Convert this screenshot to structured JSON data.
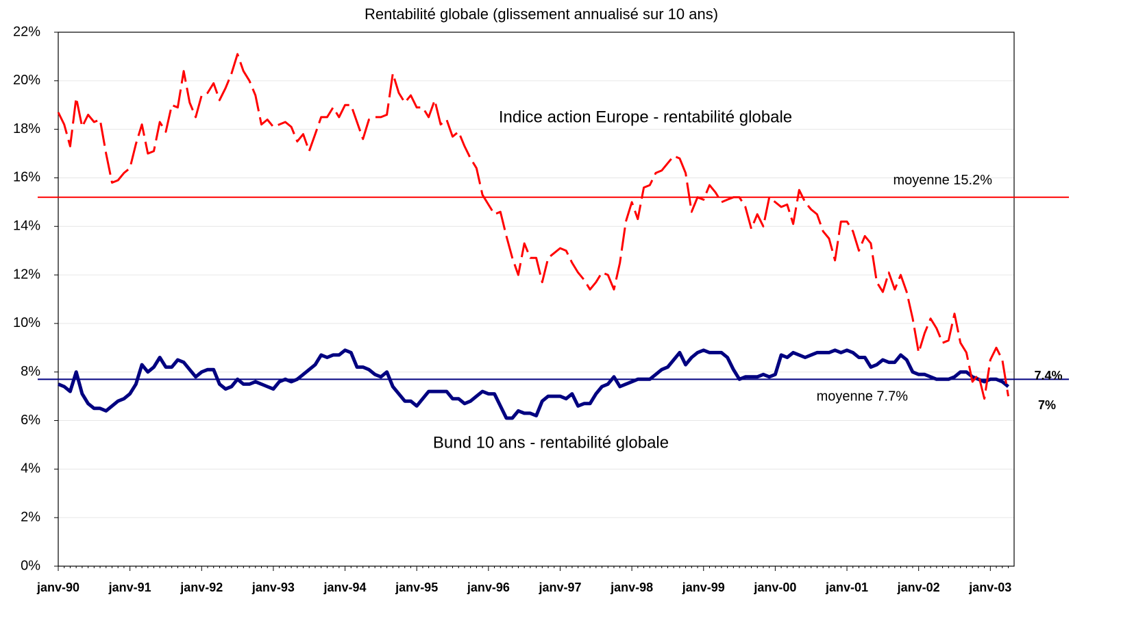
{
  "chart_data": {
    "type": "line",
    "title": "Rentabilité globale (glissement annualisé sur 10 ans)",
    "categories": [
      "janv-90",
      null,
      null,
      null,
      null,
      null,
      null,
      null,
      null,
      null,
      null,
      null,
      "janv-91",
      null,
      null,
      null,
      null,
      null,
      null,
      null,
      null,
      null,
      null,
      null,
      "janv-92",
      null,
      null,
      null,
      null,
      null,
      null,
      null,
      null,
      null,
      null,
      null,
      "janv-93",
      null,
      null,
      null,
      null,
      null,
      null,
      null,
      null,
      null,
      null,
      null,
      "janv-94",
      null,
      null,
      null,
      null,
      null,
      null,
      null,
      null,
      null,
      null,
      null,
      "janv-95",
      null,
      null,
      null,
      null,
      null,
      null,
      null,
      null,
      null,
      null,
      null,
      "janv-96",
      null,
      null,
      null,
      null,
      null,
      null,
      null,
      null,
      null,
      null,
      null,
      "janv-97",
      null,
      null,
      null,
      null,
      null,
      null,
      null,
      null,
      null,
      null,
      null,
      "janv-98",
      null,
      null,
      null,
      null,
      null,
      null,
      null,
      null,
      null,
      null,
      null,
      "janv-99",
      null,
      null,
      null,
      null,
      null,
      null,
      null,
      null,
      null,
      null,
      null,
      "janv-00",
      null,
      null,
      null,
      null,
      null,
      null,
      null,
      null,
      null,
      null,
      null,
      "janv-01",
      null,
      null,
      null,
      null,
      null,
      null,
      null,
      null,
      null,
      null,
      null,
      "janv-02",
      null,
      null,
      null,
      null,
      null,
      null,
      null,
      null,
      null,
      null,
      null,
      "janv-03",
      null,
      null,
      null
    ],
    "series": [
      {
        "name": "Indice action Europe - rentabilité globale",
        "color": "#ff0000",
        "dashed": true,
        "end_label": "7%",
        "values": [
          18.7,
          18.2,
          17.3,
          19.3,
          18.1,
          18.6,
          18.3,
          18.4,
          17.0,
          15.8,
          15.9,
          16.2,
          16.4,
          17.4,
          18.2,
          17.0,
          17.1,
          18.3,
          17.9,
          19.0,
          18.9,
          20.4,
          19.1,
          18.5,
          19.4,
          19.5,
          19.9,
          19.2,
          19.7,
          20.3,
          21.1,
          20.4,
          20.0,
          19.4,
          18.2,
          18.4,
          18.1,
          18.2,
          18.3,
          18.1,
          17.5,
          17.8,
          17.1,
          17.8,
          18.5,
          18.5,
          18.9,
          18.5,
          19.0,
          19.0,
          18.3,
          17.6,
          18.4,
          18.5,
          18.5,
          18.6,
          20.3,
          19.5,
          19.1,
          19.4,
          18.9,
          18.9,
          18.5,
          19.2,
          18.2,
          18.4,
          17.7,
          17.9,
          17.3,
          16.8,
          16.4,
          15.3,
          14.9,
          14.5,
          14.6,
          13.6,
          12.7,
          12.0,
          13.3,
          12.7,
          12.7,
          11.7,
          12.7,
          12.9,
          13.1,
          13.0,
          12.5,
          12.1,
          11.8,
          11.4,
          11.7,
          12.1,
          12.0,
          11.4,
          12.5,
          14.2,
          15.0,
          14.3,
          15.6,
          15.7,
          16.2,
          16.3,
          16.6,
          16.9,
          16.8,
          16.2,
          14.6,
          15.2,
          15.1,
          15.7,
          15.4,
          15.0,
          15.1,
          15.2,
          15.2,
          14.8,
          13.9,
          14.5,
          14.0,
          15.2,
          15.0,
          14.8,
          14.9,
          14.1,
          15.5,
          15.0,
          14.7,
          14.5,
          13.8,
          13.5,
          12.6,
          14.2,
          14.2,
          13.8,
          13.0,
          13.6,
          13.3,
          11.7,
          11.3,
          12.1,
          11.4,
          12.0,
          11.3,
          10.2,
          8.8,
          9.6,
          10.2,
          9.8,
          9.2,
          9.3,
          10.4,
          9.2,
          8.8,
          7.6,
          7.9,
          6.9,
          8.5,
          9.0,
          8.5,
          7.0
        ]
      },
      {
        "name": "Bund 10 ans - rentabilité globale",
        "color": "#000080",
        "dashed": false,
        "end_label": "7.4%",
        "values": [
          7.5,
          7.4,
          7.2,
          8.0,
          7.1,
          6.7,
          6.5,
          6.5,
          6.4,
          6.6,
          6.8,
          6.9,
          7.1,
          7.5,
          8.3,
          8.0,
          8.2,
          8.6,
          8.2,
          8.2,
          8.5,
          8.4,
          8.1,
          7.8,
          8.0,
          8.1,
          8.1,
          7.5,
          7.3,
          7.4,
          7.7,
          7.5,
          7.5,
          7.6,
          7.5,
          7.4,
          7.3,
          7.6,
          7.7,
          7.6,
          7.7,
          7.9,
          8.1,
          8.3,
          8.7,
          8.6,
          8.7,
          8.7,
          8.9,
          8.8,
          8.2,
          8.2,
          8.1,
          7.9,
          7.8,
          8.0,
          7.4,
          7.1,
          6.8,
          6.8,
          6.6,
          6.9,
          7.2,
          7.2,
          7.2,
          7.2,
          6.9,
          6.9,
          6.7,
          6.8,
          7.0,
          7.2,
          7.1,
          7.1,
          6.6,
          6.1,
          6.1,
          6.4,
          6.3,
          6.3,
          6.2,
          6.8,
          7.0,
          7.0,
          7.0,
          6.9,
          7.1,
          6.6,
          6.7,
          6.7,
          7.1,
          7.4,
          7.5,
          7.8,
          7.4,
          7.5,
          7.6,
          7.7,
          7.7,
          7.7,
          7.9,
          8.1,
          8.2,
          8.5,
          8.8,
          8.3,
          8.6,
          8.8,
          8.9,
          8.8,
          8.8,
          8.8,
          8.6,
          8.1,
          7.7,
          7.8,
          7.8,
          7.8,
          7.9,
          7.8,
          7.9,
          8.7,
          8.6,
          8.8,
          8.7,
          8.6,
          8.7,
          8.8,
          8.8,
          8.8,
          8.9,
          8.8,
          8.9,
          8.8,
          8.6,
          8.6,
          8.2,
          8.3,
          8.5,
          8.4,
          8.4,
          8.7,
          8.5,
          8.0,
          7.9,
          7.9,
          7.8,
          7.7,
          7.7,
          7.7,
          7.8,
          8.0,
          8.0,
          7.8,
          7.7,
          7.6,
          7.7,
          7.7,
          7.6,
          7.4
        ]
      }
    ],
    "reference_lines": [
      {
        "value": 15.2,
        "label": "moyenne 15.2%",
        "color": "#ff0000"
      },
      {
        "value": 7.7,
        "label": "moyenne 7.7%",
        "color": "#000080"
      }
    ],
    "ylim": [
      0,
      22
    ],
    "yticks": [
      {
        "value": 0,
        "label": "0%"
      },
      {
        "value": 2,
        "label": "2%"
      },
      {
        "value": 4,
        "label": "4%"
      },
      {
        "value": 6,
        "label": "6%"
      },
      {
        "value": 8,
        "label": "8%"
      },
      {
        "value": 10,
        "label": "10%"
      },
      {
        "value": 12,
        "label": "12%"
      },
      {
        "value": 14,
        "label": "14%"
      },
      {
        "value": 16,
        "label": "16%"
      },
      {
        "value": 18,
        "label": "18%"
      },
      {
        "value": 20,
        "label": "20%"
      },
      {
        "value": 22,
        "label": "22%"
      }
    ],
    "grid": true
  }
}
